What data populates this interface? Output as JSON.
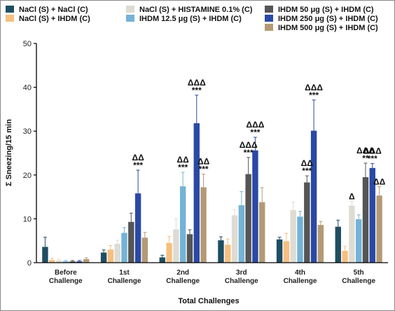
{
  "chart_data": {
    "type": "bar",
    "xlabel": "Total Challenges",
    "ylabel": "Σ Sneezing/15 min",
    "ylim": [
      0,
      50
    ],
    "yticks": [
      0,
      10,
      20,
      30,
      40,
      50
    ],
    "grid": false,
    "legend_position": "top",
    "categories": [
      [
        "Before",
        "Challenge"
      ],
      [
        "1st",
        "Challenge"
      ],
      [
        "2nd",
        "Challenge"
      ],
      [
        "3rd",
        "Challenge"
      ],
      [
        "4th",
        "Challenge"
      ],
      [
        "5th",
        "Challenge"
      ]
    ],
    "series": [
      {
        "name": "NaCl (S) + NaCl (C)",
        "color": "#1f4e63",
        "values": [
          3.6,
          2.3,
          1.2,
          5.1,
          5.3,
          8.2
        ],
        "errors": [
          2.2,
          0.6,
          0.5,
          0.8,
          0.5,
          1.5
        ]
      },
      {
        "name": "NaCl (S) + IHDM (C)",
        "color": "#f6bf80",
        "values": [
          0.6,
          3.0,
          4.5,
          4.1,
          4.9,
          2.7
        ],
        "errors": [
          0.4,
          0.9,
          1.5,
          1.3,
          1.8,
          1.0
        ]
      },
      {
        "name": "NaCl (S) + HISTAMINE 0.1% (C)",
        "color": "#dedbd3",
        "values": [
          0.5,
          4.3,
          7.6,
          10.8,
          12.0,
          13.0
        ],
        "errors": [
          0.3,
          0.8,
          2.4,
          1.3,
          1.8,
          1.0
        ]
      },
      {
        "name": "IHDM 12.5 μg (S) + IHDM (C)",
        "color": "#74b3d6",
        "values": [
          0.3,
          6.8,
          17.4,
          13.1,
          10.5,
          9.9
        ],
        "errors": [
          0.2,
          1.2,
          3.2,
          3.1,
          1.2,
          1.0
        ]
      },
      {
        "name": "IHDM 50 μg (S) + IHDM (C)",
        "color": "#555555",
        "values": [
          0.3,
          9.3,
          6.5,
          20.2,
          18.3,
          19.5
        ],
        "errors": [
          0.2,
          2.0,
          1.0,
          3.8,
          1.5,
          3.2
        ]
      },
      {
        "name": "IHDM 250 μg (S) + IHDM (C)",
        "color": "#2a49a6",
        "values": [
          0.3,
          15.8,
          31.8,
          25.6,
          30.1,
          21.6
        ],
        "errors": [
          0.2,
          5.3,
          6.4,
          3.0,
          7.0,
          1.0
        ]
      },
      {
        "name": "IHDM 500 μg (S) + IHDM (C)",
        "color": "#b49a74",
        "values": [
          0.8,
          5.7,
          17.2,
          13.8,
          8.6,
          15.3
        ],
        "errors": [
          0.3,
          1.2,
          3.0,
          3.3,
          0.8,
          2.0
        ]
      }
    ],
    "annotations": [
      {
        "category": 1,
        "series": 5,
        "lines": [
          "ΔΔ",
          "***"
        ]
      },
      {
        "category": 2,
        "series": 3,
        "lines": [
          "ΔΔ",
          "***"
        ]
      },
      {
        "category": 2,
        "series": 5,
        "lines": [
          "ΔΔΔ",
          "***"
        ]
      },
      {
        "category": 2,
        "series": 6,
        "lines": [
          "ΔΔ",
          "***"
        ]
      },
      {
        "category": 3,
        "series": 4,
        "lines": [
          "ΔΔΔ",
          "***"
        ]
      },
      {
        "category": 3,
        "series": 5,
        "lines": [
          "ΔΔΔ",
          "***"
        ]
      },
      {
        "category": 4,
        "series": 4,
        "lines": [
          "ΔΔ",
          "***"
        ]
      },
      {
        "category": 4,
        "series": 5,
        "lines": [
          "ΔΔΔ",
          "***"
        ]
      },
      {
        "category": 5,
        "series": 2,
        "lines": [
          "Δ"
        ]
      },
      {
        "category": 5,
        "series": 4,
        "lines": [
          "ΔΔΔ",
          "**"
        ]
      },
      {
        "category": 5,
        "series": 5,
        "lines": [
          "ΔΔΔ",
          "***"
        ]
      },
      {
        "category": 5,
        "series": 6,
        "lines": [
          "ΔΔ"
        ]
      }
    ]
  }
}
